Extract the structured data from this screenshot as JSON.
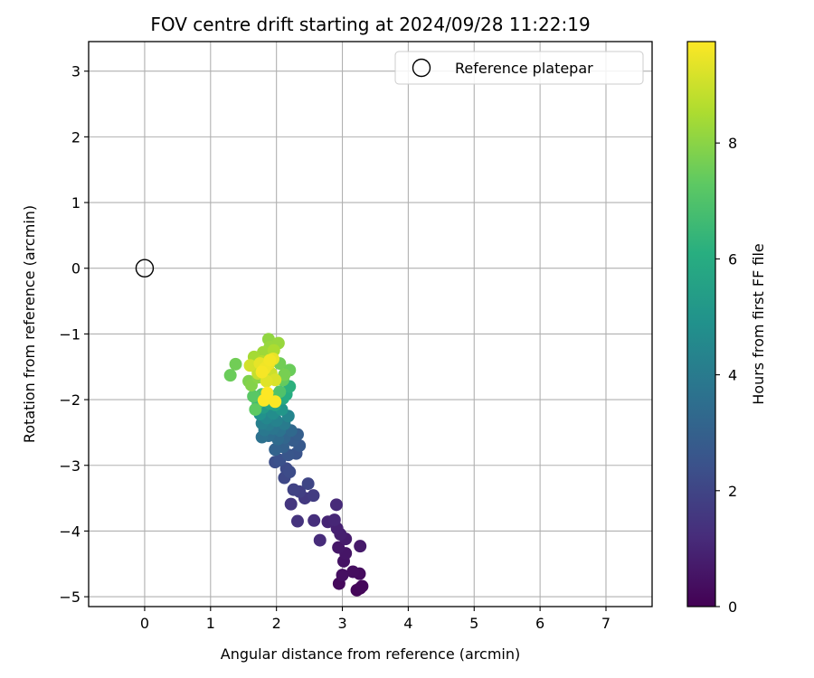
{
  "chart_data": {
    "type": "scatter",
    "title": "FOV centre drift starting at 2024/09/28 11:22:19",
    "xlabel": "Angular distance from reference (arcmin)",
    "ylabel": "Rotation from reference (arcmin)",
    "xlim": [
      -0.85,
      7.7
    ],
    "ylim": [
      -5.15,
      3.45
    ],
    "xticks": [
      0,
      1,
      2,
      3,
      4,
      5,
      6,
      7
    ],
    "yticks": [
      3,
      2,
      1,
      0,
      -1,
      -2,
      -3,
      -4,
      -5
    ],
    "grid": true,
    "legend": {
      "placement": "top-right",
      "entries": [
        "Reference platepar"
      ]
    },
    "reference_point": {
      "name": "Reference platepar",
      "x": 0,
      "y": 0
    },
    "colorbar": {
      "label": "Hours from first FF file",
      "min": 0,
      "max": 9.75,
      "ticks": [
        0,
        2,
        4,
        6,
        8
      ],
      "colormap": "viridis"
    },
    "points": [
      [
        3.27,
        -4.87,
        0.1
      ],
      [
        3.22,
        -4.9,
        0.15
      ],
      [
        3.3,
        -4.84,
        0.2
      ],
      [
        2.95,
        -4.8,
        0.25
      ],
      [
        3.26,
        -4.65,
        0.3
      ],
      [
        3.16,
        -4.62,
        0.35
      ],
      [
        3.0,
        -4.67,
        0.4
      ],
      [
        3.02,
        -4.46,
        0.5
      ],
      [
        3.05,
        -4.34,
        0.55
      ],
      [
        2.94,
        -4.25,
        0.6
      ],
      [
        3.27,
        -4.23,
        0.7
      ],
      [
        3.05,
        -4.12,
        0.75
      ],
      [
        2.97,
        -4.05,
        0.85
      ],
      [
        2.92,
        -3.96,
        0.9
      ],
      [
        2.78,
        -3.86,
        1.0
      ],
      [
        2.88,
        -3.83,
        1.05
      ],
      [
        2.91,
        -3.6,
        1.15
      ],
      [
        2.66,
        -4.14,
        1.2
      ],
      [
        2.57,
        -3.84,
        1.3
      ],
      [
        2.32,
        -3.85,
        1.4
      ],
      [
        2.22,
        -3.59,
        1.5
      ],
      [
        2.43,
        -3.5,
        1.6
      ],
      [
        2.56,
        -3.46,
        1.7
      ],
      [
        2.35,
        -3.4,
        1.8
      ],
      [
        2.26,
        -3.37,
        1.9
      ],
      [
        2.48,
        -3.28,
        2.0
      ],
      [
        2.12,
        -3.19,
        2.1
      ],
      [
        2.15,
        -3.05,
        2.2
      ],
      [
        2.2,
        -3.1,
        2.25
      ],
      [
        1.98,
        -2.95,
        2.3
      ],
      [
        2.05,
        -2.92,
        2.4
      ],
      [
        2.3,
        -2.82,
        2.5
      ],
      [
        2.18,
        -2.84,
        2.6
      ],
      [
        2.35,
        -2.7,
        2.7
      ],
      [
        2.25,
        -2.62,
        2.8
      ],
      [
        2.32,
        -2.53,
        2.9
      ],
      [
        2.1,
        -2.72,
        3.0
      ],
      [
        1.98,
        -2.76,
        3.1
      ],
      [
        2.12,
        -2.58,
        3.2
      ],
      [
        2.22,
        -2.47,
        3.3
      ],
      [
        2.02,
        -2.6,
        3.4
      ],
      [
        1.88,
        -2.55,
        3.5
      ],
      [
        1.78,
        -2.57,
        3.6
      ],
      [
        2.05,
        -2.47,
        3.7
      ],
      [
        1.95,
        -2.44,
        3.8
      ],
      [
        1.82,
        -2.46,
        3.9
      ],
      [
        2.12,
        -2.37,
        4.0
      ],
      [
        1.88,
        -2.38,
        4.1
      ],
      [
        1.78,
        -2.36,
        4.2
      ],
      [
        2.0,
        -2.32,
        4.3
      ],
      [
        2.18,
        -2.25,
        4.4
      ],
      [
        1.85,
        -2.28,
        4.5
      ],
      [
        1.95,
        -2.21,
        4.7
      ],
      [
        1.75,
        -2.22,
        4.9
      ],
      [
        2.08,
        -2.15,
        5.1
      ],
      [
        1.8,
        -2.12,
        5.3
      ],
      [
        1.98,
        -2.08,
        5.5
      ],
      [
        1.9,
        -2.06,
        5.7
      ],
      [
        2.1,
        -1.98,
        5.9
      ],
      [
        2.15,
        -1.92,
        6.0
      ],
      [
        2.2,
        -1.8,
        6.2
      ],
      [
        1.85,
        -2.0,
        6.4
      ],
      [
        1.72,
        -2.05,
        6.6
      ],
      [
        1.95,
        -1.95,
        6.8
      ],
      [
        2.05,
        -1.88,
        7.0
      ],
      [
        1.78,
        -1.92,
        7.1
      ],
      [
        1.65,
        -1.95,
        7.2
      ],
      [
        1.68,
        -2.15,
        7.3
      ],
      [
        2.1,
        -1.7,
        7.4
      ],
      [
        2.2,
        -1.55,
        7.5
      ],
      [
        1.3,
        -1.63,
        7.5
      ],
      [
        1.38,
        -1.46,
        7.6
      ],
      [
        2.05,
        -1.45,
        7.6
      ],
      [
        2.12,
        -1.62,
        7.7
      ],
      [
        1.58,
        -1.72,
        7.8
      ],
      [
        1.62,
        -1.78,
        7.9
      ],
      [
        1.72,
        -1.66,
        8.0
      ],
      [
        1.88,
        -1.08,
        8.1
      ],
      [
        2.03,
        -1.14,
        8.2
      ],
      [
        1.9,
        -1.2,
        8.2
      ],
      [
        1.8,
        -1.28,
        8.3
      ],
      [
        1.66,
        -1.35,
        8.4
      ],
      [
        1.96,
        -1.25,
        8.5
      ],
      [
        1.78,
        -1.42,
        8.6
      ],
      [
        1.68,
        -1.5,
        8.7
      ],
      [
        1.84,
        -1.55,
        8.8
      ],
      [
        1.72,
        -1.6,
        8.9
      ],
      [
        1.92,
        -1.6,
        9.0
      ],
      [
        1.6,
        -1.48,
        9.1
      ],
      [
        1.98,
        -1.7,
        9.2
      ],
      [
        1.85,
        -1.72,
        9.3
      ],
      [
        1.75,
        -1.45,
        9.4
      ],
      [
        1.95,
        -1.38,
        9.45
      ],
      [
        1.88,
        -1.46,
        9.5
      ],
      [
        1.82,
        -1.53,
        9.55
      ],
      [
        1.9,
        -1.4,
        9.6
      ],
      [
        1.78,
        -1.58,
        9.65
      ],
      [
        1.98,
        -2.03,
        9.7
      ],
      [
        1.81,
        -2.01,
        9.72
      ],
      [
        1.86,
        -1.9,
        9.75
      ]
    ]
  }
}
